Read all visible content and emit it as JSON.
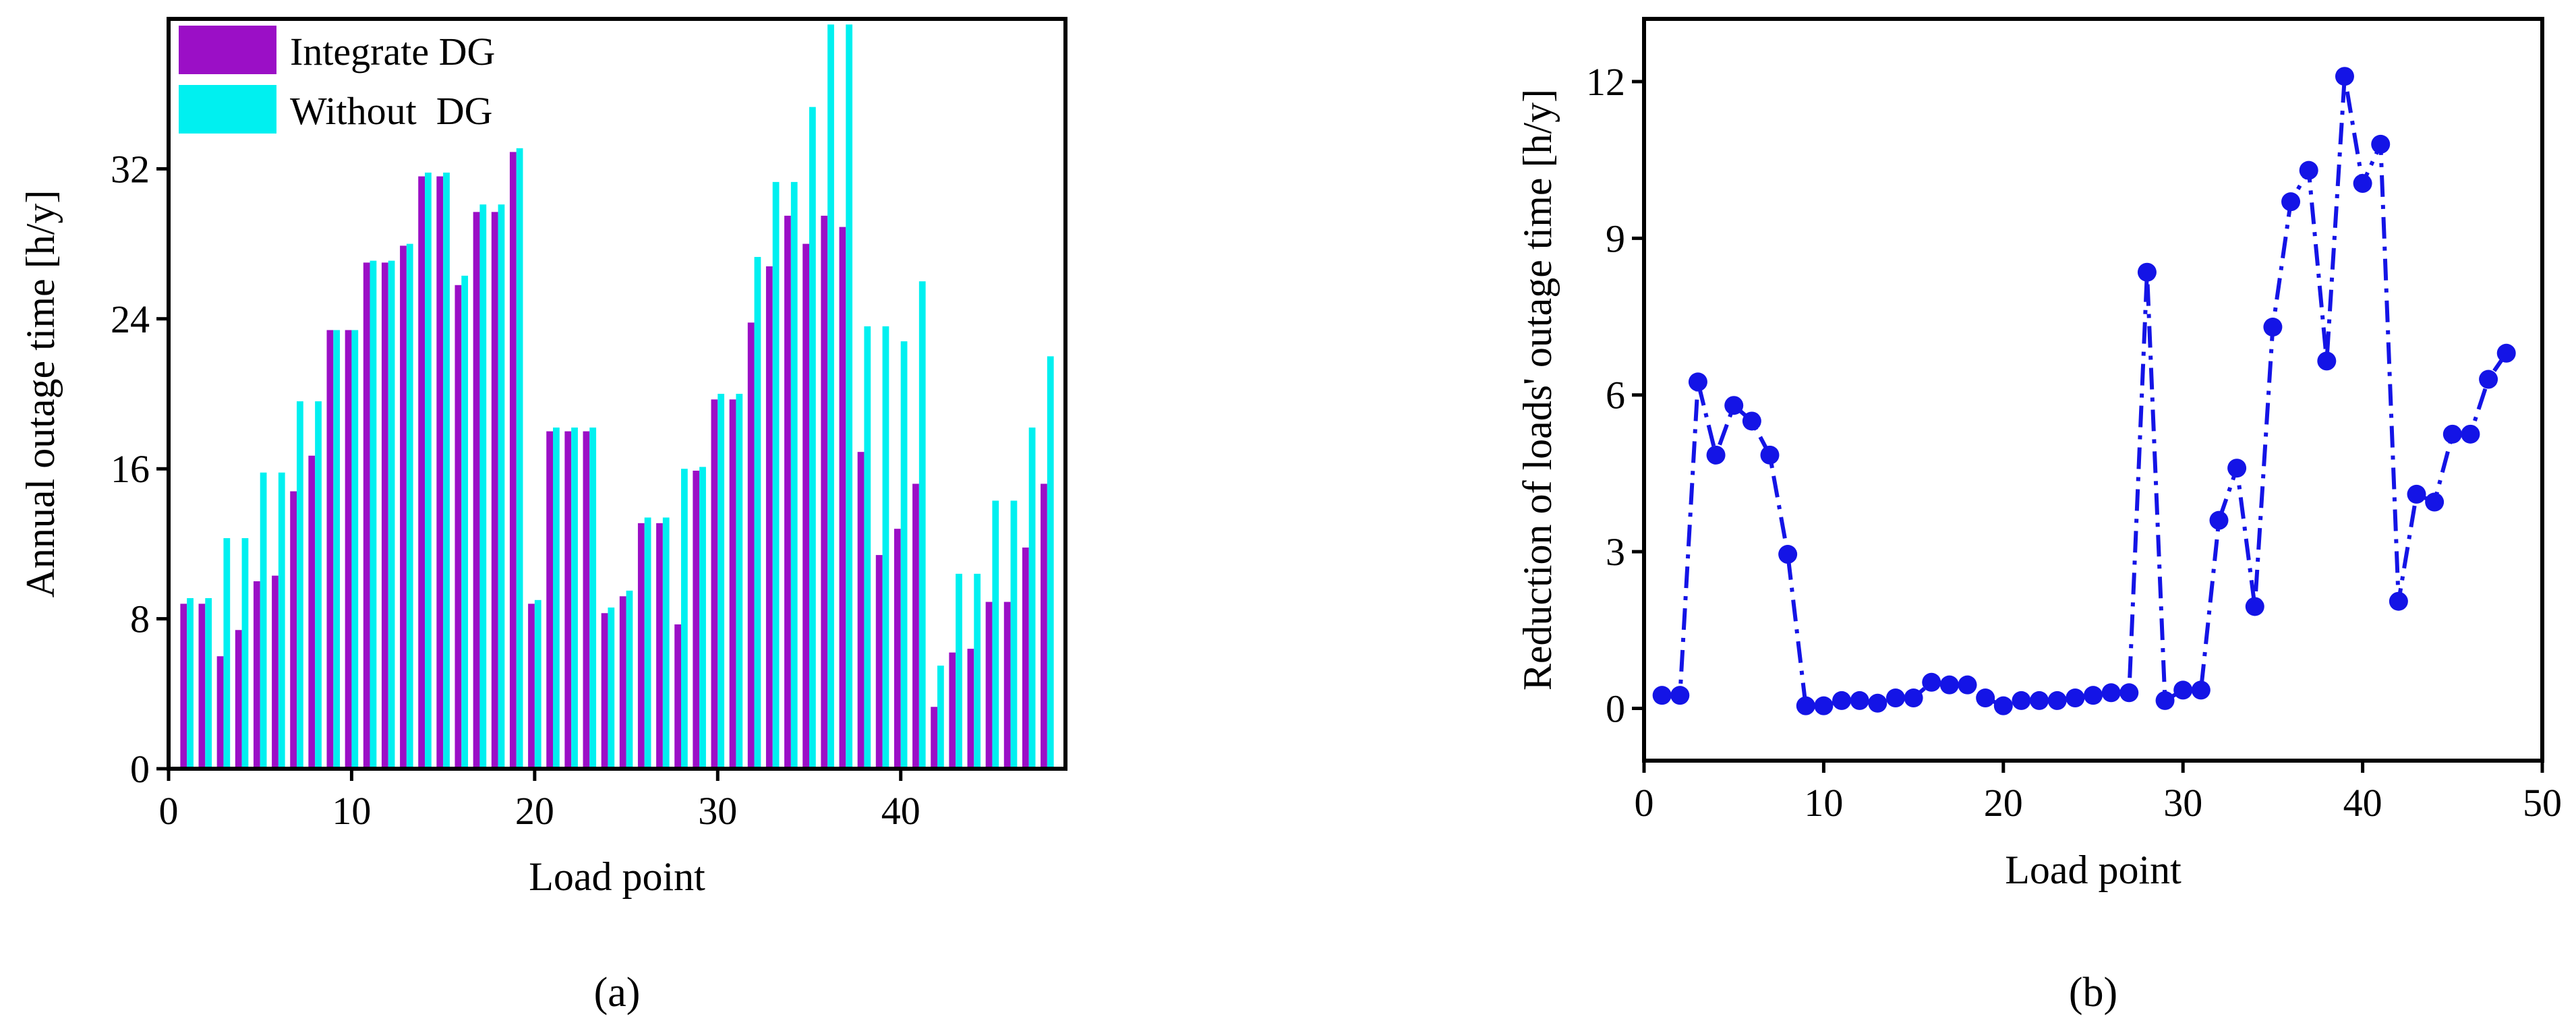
{
  "chart_data": [
    {
      "type": "bar",
      "panel_label": "(a)",
      "xlabel": "Load point",
      "ylabel": "Annual outage time [h/y]",
      "xlim": [
        0,
        49
      ],
      "ylim": [
        0,
        40
      ],
      "xticks": [
        0,
        10,
        20,
        30,
        40
      ],
      "yticks": [
        0,
        8,
        16,
        24,
        32
      ],
      "legend_position": "top-left",
      "grid": false,
      "x": [
        1,
        2,
        3,
        4,
        5,
        6,
        7,
        8,
        9,
        10,
        11,
        12,
        13,
        14,
        15,
        16,
        17,
        18,
        19,
        20,
        21,
        22,
        23,
        24,
        25,
        26,
        27,
        28,
        29,
        30,
        31,
        32,
        33,
        34,
        35,
        36,
        37,
        38,
        39,
        40,
        41,
        42,
        43,
        44,
        45,
        46,
        47,
        48
      ],
      "series": [
        {
          "name": "Integrate DG",
          "color": "#9b0fc6",
          "values": [
            8.8,
            8.8,
            6.0,
            7.4,
            10.0,
            10.3,
            14.8,
            16.7,
            23.4,
            23.4,
            27.0,
            27.0,
            27.9,
            31.6,
            31.6,
            25.8,
            29.7,
            29.7,
            32.9,
            8.8,
            18.0,
            18.0,
            18.0,
            8.3,
            9.2,
            13.1,
            13.1,
            7.7,
            15.9,
            19.7,
            19.7,
            23.8,
            26.8,
            29.5,
            28.0,
            29.5,
            28.9,
            16.9,
            11.4,
            12.8,
            15.2,
            3.3,
            6.2,
            6.4,
            8.9,
            8.9,
            11.8,
            15.2
          ]
        },
        {
          "name": "Without  DG",
          "color": "#00f0f0",
          "values": [
            9.1,
            9.1,
            12.3,
            12.3,
            15.8,
            15.8,
            19.6,
            19.6,
            23.4,
            23.4,
            27.1,
            27.1,
            28.0,
            31.8,
            31.8,
            26.3,
            30.1,
            30.1,
            33.1,
            9.0,
            18.2,
            18.2,
            18.2,
            8.6,
            9.5,
            13.4,
            13.4,
            16.0,
            16.1,
            20.0,
            20.0,
            27.3,
            31.3,
            31.3,
            35.3,
            39.7,
            39.7,
            23.6,
            23.6,
            22.8,
            26.0,
            5.5,
            10.4,
            10.4,
            14.3,
            14.3,
            18.2,
            22.0
          ]
        }
      ]
    },
    {
      "type": "line",
      "panel_label": "(b)",
      "xlabel": "Load point",
      "ylabel": "Reduction of loads' outage time [h/y]",
      "xlim": [
        0,
        50
      ],
      "ylim": [
        -1,
        13.2
      ],
      "xticks": [
        0,
        10,
        20,
        30,
        40,
        50
      ],
      "yticks": [
        0,
        3,
        6,
        9,
        12
      ],
      "grid": false,
      "line_style": "dash-dot",
      "marker": "circle",
      "color": "#1414e6",
      "x": [
        1,
        2,
        3,
        4,
        5,
        6,
        7,
        8,
        9,
        10,
        11,
        12,
        13,
        14,
        15,
        16,
        17,
        18,
        19,
        20,
        21,
        22,
        23,
        24,
        25,
        26,
        27,
        28,
        29,
        30,
        31,
        32,
        33,
        34,
        35,
        36,
        37,
        38,
        39,
        40,
        41,
        42,
        43,
        44,
        45,
        46,
        47,
        48
      ],
      "y": [
        0.25,
        0.25,
        6.25,
        4.85,
        5.8,
        5.5,
        4.85,
        2.95,
        0.05,
        0.05,
        0.15,
        0.15,
        0.1,
        0.2,
        0.2,
        0.5,
        0.45,
        0.45,
        0.2,
        0.05,
        0.15,
        0.15,
        0.15,
        0.2,
        0.25,
        0.3,
        0.3,
        8.35,
        0.15,
        0.35,
        0.35,
        3.6,
        4.6,
        1.95,
        7.3,
        9.7,
        10.3,
        6.65,
        12.1,
        10.05,
        10.8,
        2.05,
        4.1,
        3.95,
        5.25,
        5.25,
        6.3,
        6.8
      ]
    }
  ]
}
